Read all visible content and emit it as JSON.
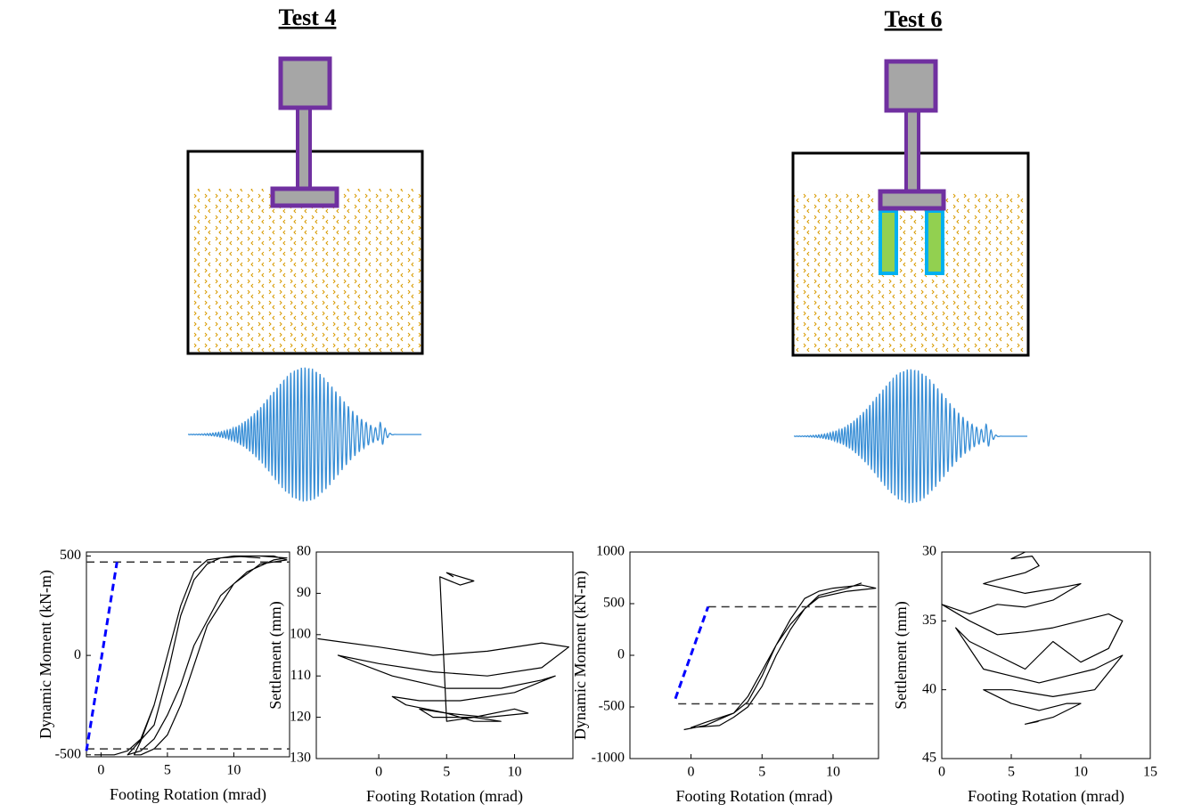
{
  "titles": [
    "Test 4",
    "Test 6"
  ],
  "chart_data": [
    {
      "type": "line",
      "xlabel": "Footing Rotation (mrad)",
      "ylabel": "Dynamic Moment (kN-m)",
      "xlim": [
        -1.1,
        14.2
      ],
      "ylim": [
        -510,
        520
      ],
      "xticks": [
        0,
        5,
        10
      ],
      "yticks": [
        -500,
        0,
        500
      ],
      "y_reversed": false,
      "series": [
        {
          "color": "#000000",
          "line_style": "solid",
          "x": [
            -0.5,
            1,
            2,
            3,
            4,
            5,
            6,
            7,
            8,
            10,
            12,
            14,
            13,
            11,
            9,
            7,
            6,
            5,
            4,
            3,
            2,
            4,
            5,
            6,
            7,
            8,
            9,
            11,
            13,
            14,
            12,
            10,
            8,
            7,
            6,
            5,
            4,
            3,
            2.5,
            3,
            4,
            5,
            6,
            7,
            8,
            10,
            12
          ],
          "y": [
            -500,
            -500,
            -480,
            -420,
            -250,
            0,
            250,
            420,
            480,
            500,
            500,
            490,
            480,
            420,
            300,
            50,
            -150,
            -300,
            -420,
            -480,
            -500,
            -350,
            -100,
            200,
            380,
            460,
            490,
            500,
            500,
            480,
            460,
            360,
            150,
            -50,
            -250,
            -400,
            -470,
            -500,
            -500,
            -430,
            -250,
            0,
            250,
            420,
            480,
            500,
            490
          ]
        },
        {
          "color": "#333333",
          "line_style": "dashed",
          "x": [
            -1.1,
            14.2
          ],
          "y": [
            470,
            470
          ]
        },
        {
          "color": "#333333",
          "line_style": "dashed",
          "x": [
            -1.1,
            14.2
          ],
          "y": [
            -470,
            -470
          ]
        },
        {
          "color": "#0000ff",
          "line_style": "dashed-bold",
          "x": [
            -1.1,
            1.2
          ],
          "y": [
            -480,
            470
          ]
        }
      ]
    },
    {
      "type": "line",
      "xlabel": "Footing Rotation (mrad)",
      "ylabel": "Settlement (mm)",
      "xlim": [
        -4.6,
        14.3
      ],
      "ylim": [
        80,
        130
      ],
      "xticks": [
        0,
        5,
        10
      ],
      "yticks": [
        80,
        90,
        100,
        110,
        120,
        130
      ],
      "y_reversed": true,
      "series": [
        {
          "color": "#000000",
          "line_style": "solid",
          "x": [
            -4.5,
            0,
            4,
            8,
            12,
            14,
            12,
            8,
            4,
            0,
            -3,
            1,
            5,
            9,
            12,
            13,
            10,
            6,
            3,
            1,
            2,
            5,
            8,
            11,
            10,
            7,
            4,
            3,
            5,
            7,
            9,
            7,
            5,
            4.5,
            6,
            7,
            5,
            5.5
          ],
          "y": [
            101,
            103,
            105,
            104,
            102,
            103,
            108,
            110,
            109,
            107,
            105,
            110,
            113,
            113,
            111,
            110,
            114,
            116,
            116,
            115,
            117,
            119,
            120,
            119,
            118,
            120,
            120,
            118,
            119,
            121,
            121,
            120,
            121,
            86,
            88,
            87,
            85,
            86
          ]
        }
      ]
    },
    {
      "type": "line",
      "xlabel": "Footing Rotation (mrad)",
      "ylabel": "Dynamic Moment (kN-m)",
      "xlim": [
        -4.3,
        13.2
      ],
      "ylim": [
        -1000,
        1000
      ],
      "xticks": [
        0,
        5,
        10
      ],
      "yticks": [
        -1000,
        -500,
        0,
        500,
        1000
      ],
      "y_reversed": false,
      "series": [
        {
          "color": "#000000",
          "line_style": "solid",
          "x": [
            -0.5,
            1,
            2,
            3,
            4,
            5,
            5.5,
            6,
            7,
            8,
            9,
            10,
            12,
            13,
            11,
            9,
            8,
            7,
            6,
            5,
            4,
            3,
            1,
            0,
            2,
            3,
            4,
            5,
            6,
            7,
            8,
            9,
            11,
            12
          ],
          "y": [
            -720,
            -680,
            -620,
            -560,
            -450,
            -200,
            -50,
            100,
            350,
            550,
            620,
            650,
            680,
            650,
            620,
            560,
            450,
            300,
            100,
            -150,
            -400,
            -560,
            -650,
            -700,
            -680,
            -600,
            -500,
            -300,
            0,
            250,
            450,
            580,
            650,
            700
          ]
        },
        {
          "color": "#333333",
          "line_style": "dashed",
          "x": [
            1.2,
            13.2
          ],
          "y": [
            470,
            470
          ]
        },
        {
          "color": "#333333",
          "line_style": "dashed",
          "x": [
            -0.9,
            13.2
          ],
          "y": [
            -470,
            -470
          ]
        },
        {
          "color": "#0000ff",
          "line_style": "dashed-bold",
          "x": [
            -1.1,
            1.2
          ],
          "y": [
            -420,
            470
          ]
        }
      ]
    },
    {
      "type": "line",
      "xlabel": "Footing Rotation (mrad)",
      "ylabel": "Settlement (mm)",
      "xlim": [
        0,
        15
      ],
      "ylim": [
        30,
        45
      ],
      "xticks": [
        0,
        5,
        10,
        15
      ],
      "yticks": [
        30,
        35,
        40,
        45
      ],
      "y_reversed": true,
      "series": [
        {
          "color": "#000000",
          "line_style": "solid",
          "x": [
            6,
            5,
            6.5,
            7,
            6,
            4,
            3,
            6,
            9,
            10,
            8,
            6,
            4,
            2,
            0,
            2,
            4,
            6,
            8,
            10,
            12,
            13,
            12,
            10,
            8,
            6,
            4,
            2,
            1,
            3,
            5,
            7,
            9,
            11,
            13,
            11,
            8,
            5,
            3,
            5,
            7,
            9,
            10,
            8,
            6,
            7
          ],
          "y": [
            30,
            30.5,
            30.3,
            31,
            31.5,
            32,
            32.3,
            33,
            32.5,
            32.3,
            33.5,
            34,
            33.8,
            34.5,
            33.8,
            35,
            36,
            35.8,
            35.5,
            35,
            34.5,
            35,
            37,
            38,
            36.5,
            38.5,
            37.5,
            36.5,
            35.5,
            38.5,
            39,
            39.5,
            39,
            38.5,
            37.5,
            40,
            40.5,
            40,
            40,
            41,
            41.5,
            41,
            41,
            42,
            42.5,
            42.3
          ]
        }
      ]
    }
  ]
}
